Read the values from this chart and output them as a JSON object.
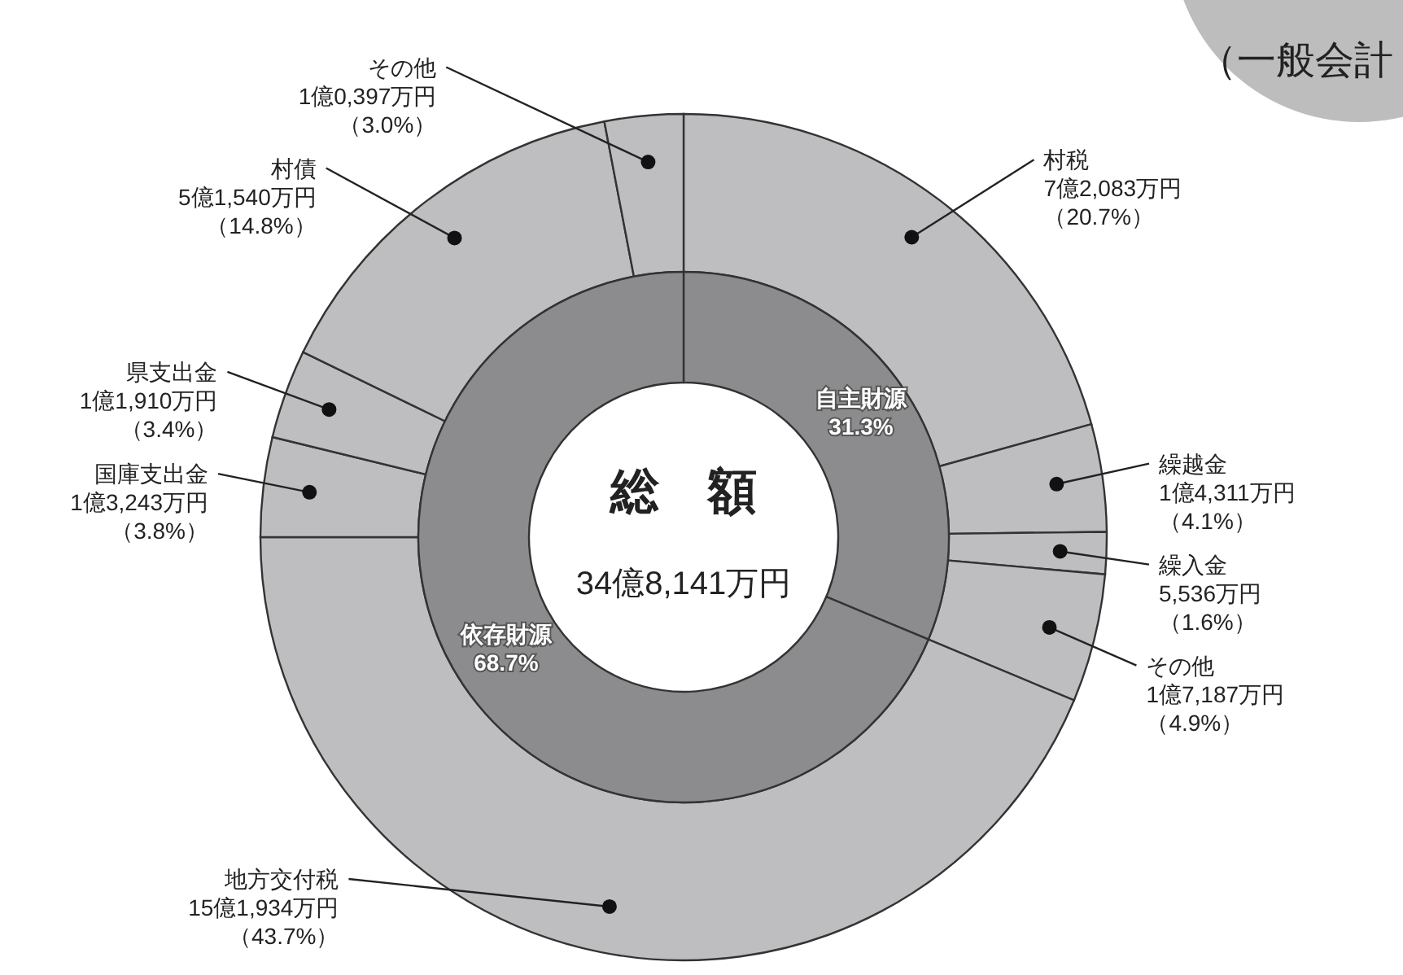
{
  "chart_data": [
    {
      "type": "donut",
      "title": "総　額",
      "subtitle": "34億8,141万円",
      "annotations": [
        "（一般会計"
      ],
      "categories": [
        "村税",
        "繰越金",
        "繰入金",
        "その他",
        "地方交付税",
        "国庫支出金",
        "県支出金",
        "村債",
        "その他"
      ],
      "values": [
        20.7,
        4.1,
        1.6,
        4.9,
        43.7,
        3.8,
        3.4,
        14.8,
        3.0
      ],
      "colors": [
        "#bebec0",
        "#bebec0",
        "#bebec0",
        "#bebec0",
        "#bebec0",
        "#bebec0",
        "#bebec0",
        "#bebec0",
        "#bebec0"
      ],
      "value_labels": [
        "7億2,083万円（20.7%）",
        "1億4,311万円（4.1%）",
        "5,536万円（1.6%）",
        "1億7,187万円（4.9%）",
        "15億1,934万円（43.7%）",
        "1億3,243万円（3.8%）",
        "1億1,910万円（3.4%）",
        "5億1,540万円（14.8%）",
        "1億0,397万円（3.0%）"
      ]
    },
    {
      "type": "donut",
      "categories": [
        "自主財源",
        "依存財源"
      ],
      "values": [
        31.3,
        68.7
      ],
      "colors": [
        "#8c8c8e",
        "#8c8c8e"
      ],
      "value_labels": [
        "31.3%",
        "68.7%"
      ]
    }
  ]
}
